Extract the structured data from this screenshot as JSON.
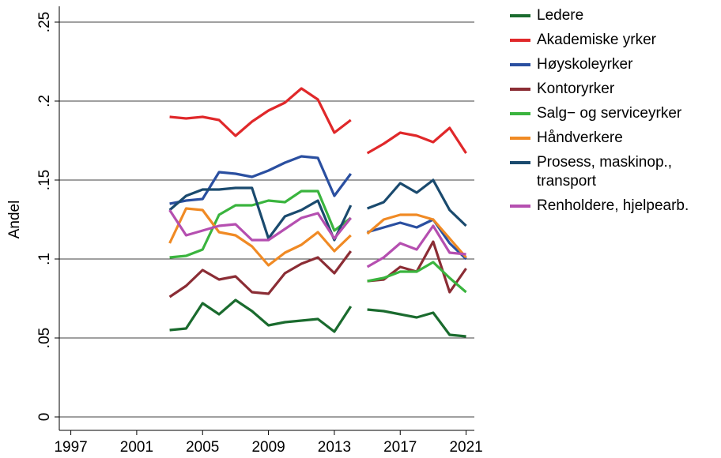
{
  "chart_data": {
    "type": "line",
    "y_label": "Andel",
    "x": [
      2003,
      2004,
      2005,
      2006,
      2007,
      2008,
      2009,
      2010,
      2011,
      2012,
      2013,
      2014,
      null,
      2015,
      2016,
      2017,
      2018,
      2019,
      2020,
      2021
    ],
    "xlim": [
      1996.3,
      2021.5
    ],
    "xticks": [
      1997,
      2001,
      2005,
      2009,
      2013,
      2017,
      2021
    ],
    "ylim": [
      0,
      0.25
    ],
    "yticks": [
      0,
      {
        "value": 0.05,
        "label": ".05"
      },
      {
        "value": 0.1,
        "label": ".1"
      },
      {
        "value": 0.15,
        "label": ".15"
      },
      {
        "value": 0.2,
        "label": ".2"
      },
      {
        "value": 0.25,
        "label": ".25"
      }
    ],
    "grid": true,
    "series": [
      {
        "name": "Ledere",
        "color": "#1a6b2e",
        "values": [
          0.055,
          0.056,
          0.072,
          0.065,
          0.074,
          0.067,
          0.058,
          0.06,
          0.061,
          0.062,
          0.054,
          0.07,
          null,
          0.068,
          0.067,
          0.065,
          0.063,
          0.066,
          0.052,
          0.051
        ]
      },
      {
        "name": "Akademiske yrker",
        "color": "#e0282a",
        "values": [
          0.19,
          0.189,
          0.19,
          0.188,
          0.178,
          0.187,
          0.194,
          0.199,
          0.208,
          0.201,
          0.18,
          0.188,
          null,
          0.167,
          0.173,
          0.18,
          0.178,
          0.174,
          0.183,
          0.167
        ]
      },
      {
        "name": "Høyskoleyrker",
        "color": "#2a4fa0",
        "values": [
          0.135,
          0.137,
          0.138,
          0.155,
          0.154,
          0.152,
          0.156,
          0.161,
          0.165,
          0.164,
          0.14,
          0.154,
          null,
          0.117,
          0.12,
          0.123,
          0.12,
          0.125,
          0.11,
          0.1
        ]
      },
      {
        "name": "Kontoryrker",
        "color": "#8b2d35",
        "values": [
          0.076,
          0.083,
          0.093,
          0.087,
          0.089,
          0.079,
          0.078,
          0.091,
          0.097,
          0.101,
          0.091,
          0.105,
          null,
          0.086,
          0.087,
          0.095,
          0.092,
          0.111,
          0.079,
          0.094
        ]
      },
      {
        "name": "Salg− og serviceyrker",
        "color": "#3ab43e",
        "values": [
          0.101,
          0.102,
          0.106,
          0.128,
          0.134,
          0.134,
          0.137,
          0.136,
          0.143,
          0.143,
          0.118,
          0.126,
          null,
          0.086,
          0.088,
          0.092,
          0.092,
          0.098,
          0.088,
          0.079
        ]
      },
      {
        "name": "Håndverkere",
        "color": "#f08a24",
        "values": [
          0.11,
          0.132,
          0.131,
          0.117,
          0.115,
          0.108,
          0.096,
          0.104,
          0.109,
          0.117,
          0.105,
          0.115,
          null,
          0.116,
          0.125,
          0.128,
          0.128,
          0.125,
          0.113,
          0.101
        ]
      },
      {
        "name": "Prosess, maskinop., transport",
        "color": "#1a4a6e",
        "values": [
          0.131,
          0.14,
          0.144,
          0.144,
          0.145,
          0.145,
          0.113,
          0.127,
          0.131,
          0.137,
          0.112,
          0.134,
          null,
          0.132,
          0.136,
          0.148,
          0.142,
          0.15,
          0.131,
          0.121
        ]
      },
      {
        "name": "Renholdere, hjelpearb.",
        "color": "#b54fb0",
        "values": [
          0.131,
          0.115,
          0.118,
          0.121,
          0.122,
          0.112,
          0.112,
          0.119,
          0.126,
          0.129,
          0.113,
          0.126,
          null,
          0.095,
          0.101,
          0.11,
          0.106,
          0.121,
          0.104,
          0.103
        ]
      }
    ]
  }
}
